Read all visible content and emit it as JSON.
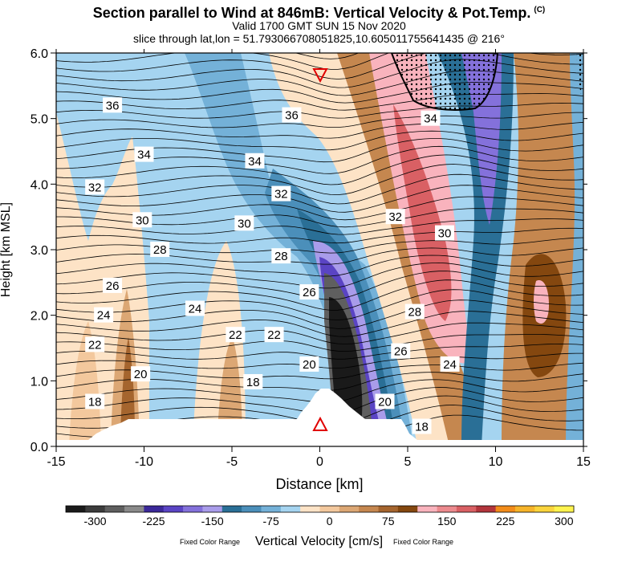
{
  "header": {
    "title": "Section parallel to Wind at 846mB: Vertical Velocity & Pot.Temp.",
    "copyright": "(C)",
    "valid_time": "Valid 1700 GMT SUN 15 Nov 2020",
    "slice": "slice through lat,lon = 51.793066708051825,10.605011755641435 @ 216°"
  },
  "chart_data": {
    "type": "heatmap",
    "xlabel": "Distance [km]",
    "ylabel": "Height [km MSL]",
    "xlim": [
      -15,
      15
    ],
    "ylim": [
      0,
      6
    ],
    "x_ticks": [
      "-15",
      "-10",
      "-5",
      "0",
      "5",
      "10",
      "15"
    ],
    "y_ticks": [
      "0.0",
      "1.0",
      "2.0",
      "3.0",
      "4.0",
      "5.0",
      "6.0"
    ],
    "colorbar": {
      "label": "Vertical Velocity [cm/s]",
      "note_left": "Fixed Color Range",
      "note_right": "Fixed Color Range",
      "tick_labels": [
        "-300",
        "-225",
        "-150",
        "-75",
        "0",
        "75",
        "150",
        "225",
        "300"
      ],
      "colors": [
        "#1a1a1a",
        "#3c3c3c",
        "#5f5f5f",
        "#8a8a8a",
        "#3b2899",
        "#5a44c4",
        "#8471db",
        "#a99cea",
        "#2a6f96",
        "#4b8fba",
        "#74b1d8",
        "#a5d4f0",
        "#fde3c6",
        "#f3c89d",
        "#dca774",
        "#c5874f",
        "#a5652e",
        "#84470f",
        "#f9b3bd",
        "#ec8a8e",
        "#d96064",
        "#b2353c",
        "#f28c1a",
        "#f6b42a",
        "#fbd43d",
        "#fff34e"
      ]
    },
    "theta_labels": [
      {
        "x": -11.8,
        "y": 5.2,
        "v": "36"
      },
      {
        "x": -1.6,
        "y": 5.05,
        "v": "36"
      },
      {
        "x": -10.0,
        "y": 4.45,
        "v": "34"
      },
      {
        "x": -3.7,
        "y": 4.35,
        "v": "34"
      },
      {
        "x": 6.3,
        "y": 5.0,
        "v": "34"
      },
      {
        "x": -12.8,
        "y": 3.95,
        "v": "32"
      },
      {
        "x": -2.2,
        "y": 3.85,
        "v": "32"
      },
      {
        "x": 4.3,
        "y": 3.5,
        "v": "32"
      },
      {
        "x": -10.1,
        "y": 3.45,
        "v": "30"
      },
      {
        "x": -4.3,
        "y": 3.4,
        "v": "30"
      },
      {
        "x": 7.1,
        "y": 3.25,
        "v": "30"
      },
      {
        "x": -9.1,
        "y": 3.0,
        "v": "28"
      },
      {
        "x": -2.2,
        "y": 2.9,
        "v": "28"
      },
      {
        "x": 5.4,
        "y": 2.05,
        "v": "28"
      },
      {
        "x": -11.8,
        "y": 2.45,
        "v": "26"
      },
      {
        "x": -0.6,
        "y": 2.35,
        "v": "26"
      },
      {
        "x": 4.6,
        "y": 1.45,
        "v": "26"
      },
      {
        "x": -12.3,
        "y": 2.0,
        "v": "24"
      },
      {
        "x": -7.1,
        "y": 2.1,
        "v": "24"
      },
      {
        "x": 7.4,
        "y": 1.25,
        "v": "24"
      },
      {
        "x": -12.8,
        "y": 1.55,
        "v": "22"
      },
      {
        "x": -4.8,
        "y": 1.7,
        "v": "22"
      },
      {
        "x": -2.6,
        "y": 1.7,
        "v": "22"
      },
      {
        "x": -10.2,
        "y": 1.1,
        "v": "20"
      },
      {
        "x": -0.6,
        "y": 1.25,
        "v": "20"
      },
      {
        "x": 3.7,
        "y": 0.68,
        "v": "20"
      },
      {
        "x": -12.8,
        "y": 0.68,
        "v": "18"
      },
      {
        "x": -3.8,
        "y": 0.98,
        "v": "18"
      },
      {
        "x": 5.8,
        "y": 0.3,
        "v": "18"
      }
    ]
  }
}
